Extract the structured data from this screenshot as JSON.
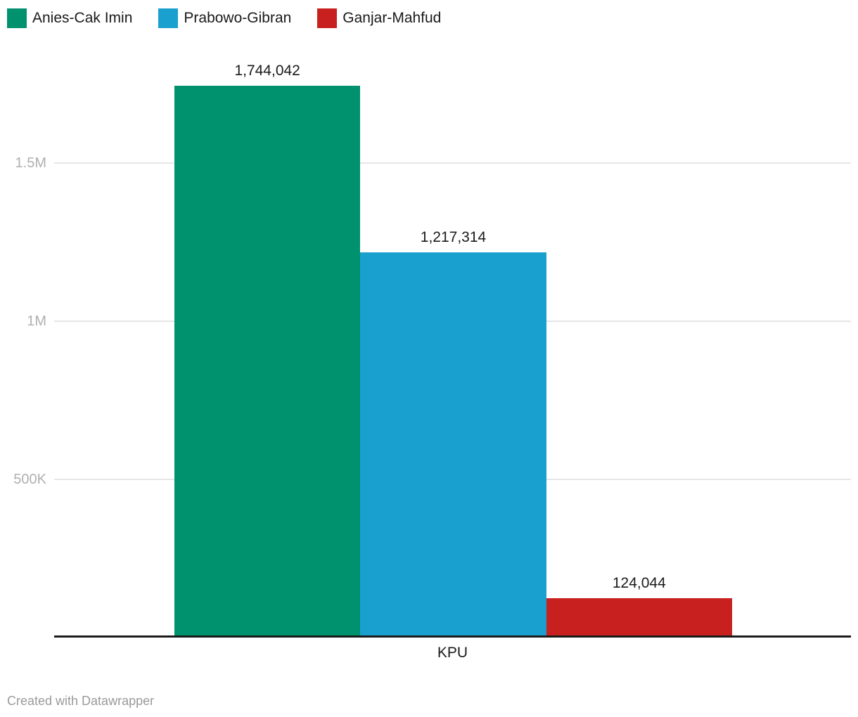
{
  "legend": {
    "items": [
      {
        "label": "Anies-Cak Imin",
        "color": "#00916e"
      },
      {
        "label": "Prabowo-Gibran",
        "color": "#1aa0ce"
      },
      {
        "label": "Ganjar-Mahfud",
        "color": "#c81f1f"
      }
    ]
  },
  "chart_data": {
    "type": "bar",
    "title": "",
    "categories": [
      "KPU"
    ],
    "series": [
      {
        "name": "Anies-Cak Imin",
        "values": [
          1744042
        ],
        "label": "1,744,042",
        "color": "#00916e"
      },
      {
        "name": "Prabowo-Gibran",
        "values": [
          1217314
        ],
        "label": "1,217,314",
        "color": "#1aa0ce"
      },
      {
        "name": "Ganjar-Mahfud",
        "values": [
          124044
        ],
        "label": "124,044",
        "color": "#c81f1f"
      }
    ],
    "xlabel": "KPU",
    "ylabel": "",
    "ylim": [
      0,
      1800000
    ],
    "yticks": [
      {
        "value": 500000,
        "label": "500K"
      },
      {
        "value": 1000000,
        "label": "1M"
      },
      {
        "value": 1500000,
        "label": "1.5M"
      }
    ],
    "grid": true,
    "legend_position": "top",
    "value_labels": true
  },
  "footer": {
    "attribution": "Created with Datawrapper"
  }
}
